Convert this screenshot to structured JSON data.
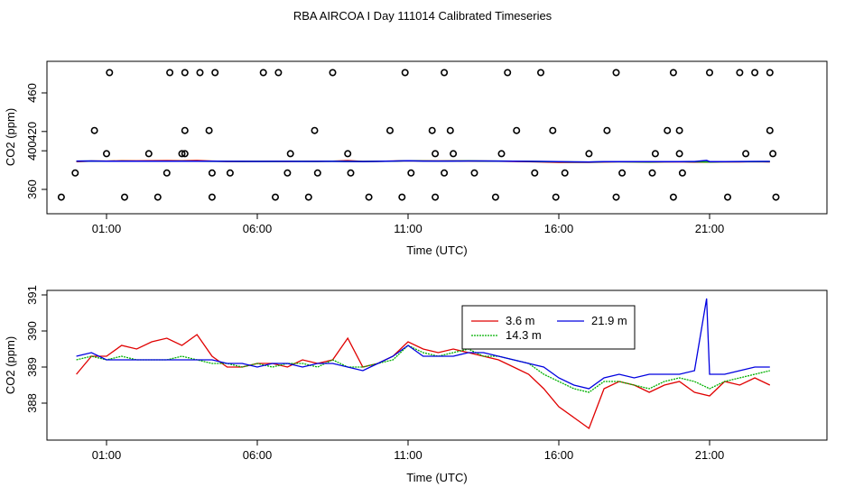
{
  "title": "RBA AIRCOA I  Day 111014  Calibrated Timeseries",
  "chart_data": [
    {
      "type": "scatter",
      "xlabel": "Time (UTC)",
      "ylabel": "CO2 (ppm)",
      "xlim": [
        -1.2,
        24.0
      ],
      "ylim": [
        340,
        490
      ],
      "x_ticks": [
        1,
        6,
        11,
        16,
        21
      ],
      "x_tick_labels": [
        "01:00",
        "06:00",
        "11:00",
        "16:00",
        "21:00"
      ],
      "y_ticks": [
        360,
        400,
        420,
        460
      ],
      "y_tick_labels": [
        "360",
        "400",
        "420",
        "460"
      ],
      "calibration_points": {
        "note": "open circles at standard-gas levels",
        "levels": [
          {
            "y": 352,
            "x": [
              -0.5,
              1.6,
              2.7,
              4.5,
              6.6,
              7.7,
              9.7,
              10.8,
              11.9,
              13.9,
              15.9,
              17.9,
              19.8,
              21.6,
              23.2
            ]
          },
          {
            "y": 377,
            "x": [
              -0.04,
              3.0,
              4.5,
              5.1,
              7.0,
              8.0,
              9.1,
              11.1,
              12.2,
              13.2,
              15.2,
              16.2,
              18.1,
              19.1,
              20.1
            ]
          },
          {
            "y": 397,
            "x": [
              1.0,
              2.4,
              3.5,
              3.6,
              7.1,
              9.0,
              11.9,
              12.5,
              14.1,
              17.0,
              19.2,
              20.0,
              22.2,
              23.1
            ]
          },
          {
            "y": 421,
            "x": [
              0.6,
              3.6,
              4.4,
              7.9,
              10.4,
              11.8,
              12.4,
              14.6,
              15.8,
              17.6,
              19.6,
              20.0,
              23.0
            ]
          },
          {
            "y": 481,
            "x": [
              1.1,
              3.1,
              3.6,
              4.1,
              4.6,
              6.2,
              6.7,
              8.5,
              10.9,
              12.2,
              14.3,
              15.4,
              17.9,
              19.8,
              21.0,
              22.0,
              22.5,
              23.0
            ]
          }
        ]
      },
      "series_note": "3.6 m, 14.3 m and 21.9 m traces near 388-391 ppm (same data as lower panel)"
    },
    {
      "type": "line",
      "xlabel": "Time (UTC)",
      "ylabel": "CO2 (ppm)",
      "xlim": [
        -1.2,
        24.0
      ],
      "ylim": [
        387.0,
        391.0
      ],
      "x_ticks": [
        1,
        6,
        11,
        16,
        21
      ],
      "x_tick_labels": [
        "01:00",
        "06:00",
        "11:00",
        "16:00",
        "21:00"
      ],
      "y_ticks": [
        388,
        389,
        390,
        391
      ],
      "y_tick_labels": [
        "388",
        "389",
        "390",
        "391"
      ],
      "legend": {
        "position": "top-center",
        "entries": [
          "3.6 m",
          "14.3 m",
          "21.9 m"
        ]
      },
      "series": [
        {
          "name": "3.6 m",
          "color": "#e00000",
          "x": [
            0.0,
            0.5,
            1.0,
            1.5,
            2.0,
            2.5,
            3.0,
            3.5,
            4.0,
            4.5,
            5.0,
            5.5,
            6.0,
            6.5,
            7.0,
            7.5,
            8.0,
            8.5,
            9.0,
            9.5,
            10.0,
            10.5,
            11.0,
            11.5,
            12.0,
            12.5,
            13.0,
            13.5,
            14.0,
            14.5,
            15.0,
            15.5,
            16.0,
            16.5,
            17.0,
            17.5,
            18.0,
            18.5,
            19.0,
            19.5,
            20.0,
            20.5,
            21.0,
            21.5,
            22.0,
            22.5,
            23.0
          ],
          "values": [
            388.8,
            389.3,
            389.3,
            389.6,
            389.5,
            389.7,
            389.8,
            389.6,
            389.9,
            389.3,
            389.0,
            389.0,
            389.1,
            389.1,
            389.0,
            389.2,
            389.1,
            389.2,
            389.8,
            389.0,
            389.1,
            389.3,
            389.7,
            389.5,
            389.4,
            389.5,
            389.4,
            389.3,
            389.2,
            389.0,
            388.8,
            388.4,
            387.9,
            387.6,
            387.3,
            388.4,
            388.6,
            388.5,
            388.3,
            388.5,
            388.6,
            388.3,
            388.2,
            388.6,
            388.5,
            388.7,
            388.5
          ]
        },
        {
          "name": "14.3 m",
          "color": "#00b000",
          "x": [
            0.0,
            0.5,
            1.0,
            1.5,
            2.0,
            2.5,
            3.0,
            3.5,
            4.0,
            4.5,
            5.0,
            5.5,
            6.0,
            6.5,
            7.0,
            7.5,
            8.0,
            8.5,
            9.0,
            9.5,
            10.0,
            10.5,
            11.0,
            11.5,
            12.0,
            12.5,
            13.0,
            13.5,
            14.0,
            14.5,
            15.0,
            15.5,
            16.0,
            16.5,
            17.0,
            17.5,
            18.0,
            18.5,
            19.0,
            19.5,
            20.0,
            20.5,
            21.0,
            21.5,
            22.0,
            22.5,
            23.0
          ],
          "values": [
            389.2,
            389.3,
            389.2,
            389.3,
            389.2,
            389.2,
            389.2,
            389.3,
            389.2,
            389.1,
            389.1,
            389.0,
            389.1,
            389.0,
            389.1,
            389.1,
            389.0,
            389.2,
            389.0,
            389.0,
            389.1,
            389.2,
            389.6,
            389.4,
            389.3,
            389.4,
            389.5,
            389.3,
            389.3,
            389.2,
            389.1,
            388.8,
            388.6,
            388.4,
            388.3,
            388.6,
            388.6,
            388.5,
            388.4,
            388.6,
            388.7,
            388.6,
            388.4,
            388.6,
            388.7,
            388.8,
            388.9
          ]
        },
        {
          "name": "21.9 m",
          "color": "#0000e0",
          "x": [
            0.0,
            0.5,
            1.0,
            1.5,
            2.0,
            2.5,
            3.0,
            3.5,
            4.0,
            4.5,
            5.0,
            5.5,
            6.0,
            6.5,
            7.0,
            7.5,
            8.0,
            8.5,
            9.0,
            9.5,
            10.0,
            10.5,
            11.0,
            11.5,
            12.0,
            12.5,
            13.0,
            13.5,
            14.0,
            14.5,
            15.0,
            15.5,
            16.0,
            16.5,
            17.0,
            17.5,
            18.0,
            18.5,
            19.0,
            19.5,
            20.0,
            20.5,
            20.9,
            21.0,
            21.5,
            22.0,
            22.5,
            23.0
          ],
          "values": [
            389.3,
            389.4,
            389.2,
            389.2,
            389.2,
            389.2,
            389.2,
            389.2,
            389.2,
            389.2,
            389.1,
            389.1,
            389.0,
            389.1,
            389.1,
            389.0,
            389.1,
            389.1,
            389.0,
            388.9,
            389.1,
            389.3,
            389.6,
            389.3,
            389.3,
            389.3,
            389.4,
            389.4,
            389.3,
            389.2,
            389.1,
            389.0,
            388.7,
            388.5,
            388.4,
            388.7,
            388.8,
            388.7,
            388.8,
            388.8,
            388.8,
            388.9,
            390.9,
            388.8,
            388.8,
            388.9,
            389.0,
            389.0
          ]
        }
      ]
    }
  ]
}
